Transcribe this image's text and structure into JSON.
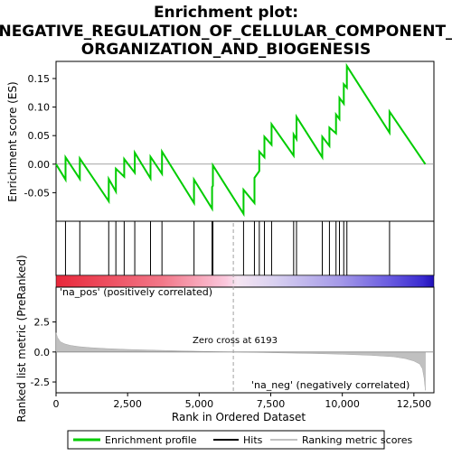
{
  "chart_data": {
    "type": "line",
    "title": [
      "Enrichment plot:",
      "NEGATIVE_REGULATION_OF_CELLULAR_COMPONENT_",
      "ORGANIZATION_AND_BIOGENESIS"
    ],
    "colors": {
      "enrichment_line": "#00cc00",
      "hits": "#000000",
      "ranking_fill": "#c0c0c0",
      "pos_label": "#cc0000",
      "neg_label": "#0000cc",
      "zero_cross_line": "#a0a0a0"
    },
    "top_panel": {
      "ylabel": "Enrichment score (ES)",
      "ylim": [
        -0.1,
        0.18
      ],
      "yticks": [
        0.15,
        0.1,
        0.05,
        0.0,
        -0.05
      ],
      "ytick_labels": [
        "0.15",
        "0.10",
        "0.05",
        "0.00",
        "-0.05"
      ],
      "xlim": [
        0,
        13200
      ],
      "series": [
        {
          "x": [
            0,
            330,
            330,
            830,
            830,
            1840,
            1840,
            2090,
            2090,
            2380,
            2380,
            2750,
            2750,
            3300,
            3300,
            3700,
            3700,
            4820,
            4820,
            5450,
            5450,
            5480,
            5480,
            6550,
            6550,
            6930,
            6930,
            7100,
            7100,
            7280,
            7280,
            7530,
            7530,
            8300,
            8300,
            8400,
            8400,
            9300,
            9300,
            9550,
            9550,
            9780,
            9780,
            9900,
            9900,
            10050,
            10050,
            10160,
            10160,
            11650,
            11650,
            12900
          ],
          "y": [
            0.0,
            -0.027,
            0.012,
            -0.026,
            0.01,
            -0.065,
            -0.026,
            -0.048,
            -0.008,
            -0.022,
            0.009,
            -0.015,
            0.02,
            -0.025,
            0.013,
            -0.017,
            0.022,
            -0.068,
            -0.027,
            -0.078,
            -0.04,
            -0.038,
            -0.002,
            -0.087,
            -0.045,
            -0.068,
            -0.024,
            -0.012,
            0.022,
            0.012,
            0.048,
            0.034,
            0.07,
            0.015,
            0.052,
            0.044,
            0.083,
            0.012,
            0.048,
            0.032,
            0.064,
            0.054,
            0.087,
            0.079,
            0.116,
            0.106,
            0.14,
            0.134,
            0.172,
            0.055,
            0.092,
            0.0
          ]
        }
      ]
    },
    "hits": [
      330,
      830,
      1840,
      2090,
      2380,
      2750,
      3300,
      3700,
      4820,
      5450,
      5480,
      6550,
      6930,
      7100,
      7280,
      7530,
      8300,
      8400,
      9300,
      9550,
      9780,
      9900,
      10050,
      10160,
      11650
    ],
    "bottom_panel": {
      "ylabel": "Ranked list metric (PreRanked)",
      "xlabel": "Rank in Ordered Dataset",
      "ylim": [
        -3.4,
        5.4
      ],
      "yticks": [
        2.5,
        0.0,
        -2.5
      ],
      "ytick_labels": [
        "2.5",
        "0.0",
        "-2.5"
      ],
      "xticks": [
        0,
        2500,
        5000,
        7500,
        10000,
        12500
      ],
      "xtick_labels": [
        "0",
        "2,500",
        "5,000",
        "7,500",
        "10,000",
        "12,500"
      ],
      "xlim": [
        0,
        13200
      ],
      "n_genes": 12900,
      "zero_cross": 6193,
      "zero_cross_label": "Zero cross at 6193",
      "pos_label": "'na_pos' (positively correlated)",
      "neg_label": "'na_neg' (negatively correlated)",
      "metric_profile": {
        "x": [
          0,
          50,
          150,
          300,
          500,
          800,
          1200,
          1800,
          2500,
          3500,
          4500,
          5500,
          6193,
          7000,
          8000,
          9000,
          10000,
          11000,
          11800,
          12200,
          12500,
          12700,
          12800,
          12860,
          12900
        ],
        "y": [
          1.6,
          1.2,
          0.85,
          0.68,
          0.55,
          0.44,
          0.36,
          0.28,
          0.21,
          0.14,
          0.08,
          0.03,
          0.0,
          -0.04,
          -0.08,
          -0.13,
          -0.19,
          -0.28,
          -0.4,
          -0.55,
          -0.75,
          -1.0,
          -1.4,
          -2.2,
          -3.2
        ]
      }
    },
    "legend": {
      "entries": [
        {
          "label": "Enrichment profile",
          "color": "#00cc00"
        },
        {
          "label": "Hits",
          "color": "#000000"
        },
        {
          "label": "Ranking metric scores",
          "color": "#c0c0c0"
        }
      ]
    }
  }
}
